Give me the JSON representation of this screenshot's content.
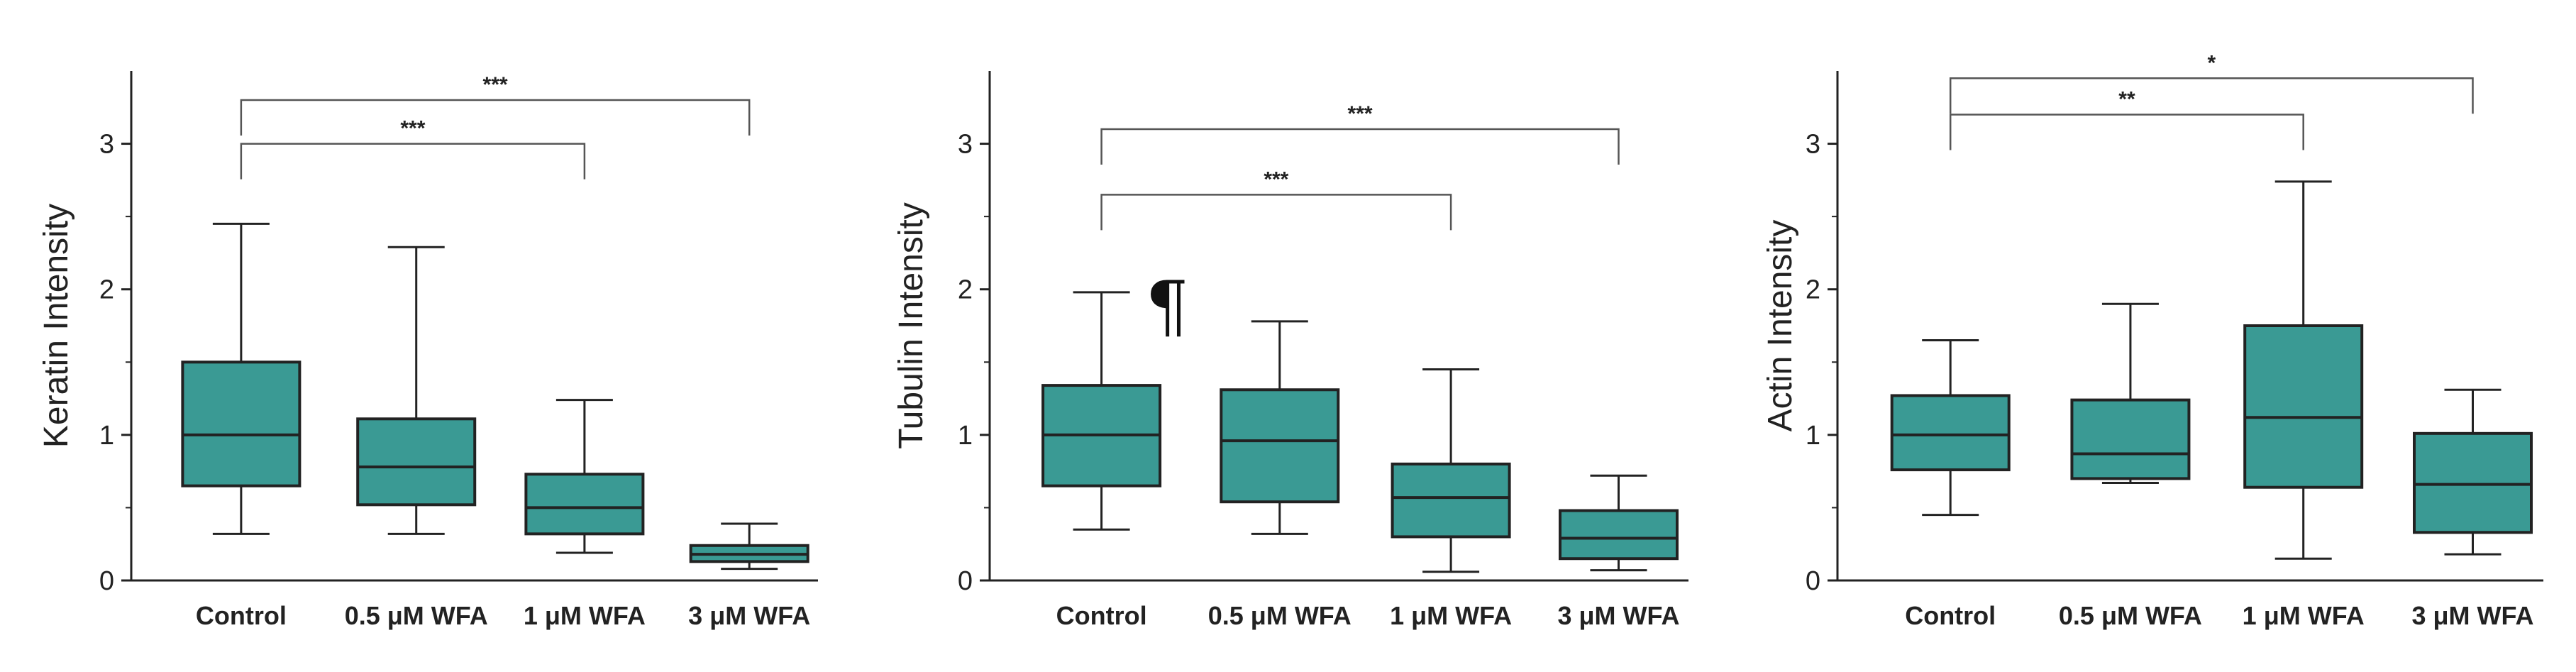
{
  "colors": {
    "box_fill": "#3a9a94",
    "stroke": "#222222",
    "bracket": "#555555"
  },
  "chart_data": [
    {
      "type": "box",
      "ylabel": "Keratin Intensity",
      "ylim": [
        0,
        3.5
      ],
      "yticks": [
        "0",
        "1",
        "2",
        "3"
      ],
      "categories": [
        "Control",
        "0.5 μM WFA",
        "1 μM WFA",
        "3 μM WFA"
      ],
      "boxes": [
        {
          "min": 0.32,
          "q1": 0.65,
          "median": 1.0,
          "q3": 1.5,
          "max": 2.45
        },
        {
          "min": 0.32,
          "q1": 0.52,
          "median": 0.78,
          "q3": 1.11,
          "max": 2.29
        },
        {
          "min": 0.19,
          "q1": 0.32,
          "median": 0.5,
          "q3": 0.73,
          "max": 1.24
        },
        {
          "min": 0.08,
          "q1": 0.13,
          "median": 0.18,
          "q3": 0.24,
          "max": 0.39
        }
      ],
      "significance": [
        {
          "from": 0,
          "to": 2,
          "level": 3.0,
          "label": "***"
        },
        {
          "from": 0,
          "to": 3,
          "level": 3.3,
          "label": "***"
        }
      ]
    },
    {
      "type": "box",
      "ylabel": "Tubulin Intensity",
      "ylim": [
        0,
        3.5
      ],
      "yticks": [
        "0",
        "1",
        "2",
        "3"
      ],
      "categories": [
        "Control",
        "0.5 μM WFA",
        "1 μM WFA",
        "3 μM WFA"
      ],
      "boxes": [
        {
          "min": 0.35,
          "q1": 0.65,
          "median": 1.0,
          "q3": 1.34,
          "max": 1.98
        },
        {
          "min": 0.32,
          "q1": 0.54,
          "median": 0.96,
          "q3": 1.31,
          "max": 1.78
        },
        {
          "min": 0.06,
          "q1": 0.3,
          "median": 0.57,
          "q3": 0.8,
          "max": 1.45
        },
        {
          "min": 0.07,
          "q1": 0.15,
          "median": 0.29,
          "q3": 0.48,
          "max": 0.72
        }
      ],
      "significance": [
        {
          "from": 0,
          "to": 2,
          "level": 2.65,
          "label": "***"
        },
        {
          "from": 0,
          "to": 3,
          "level": 3.1,
          "label": "***"
        }
      ],
      "annotation": "¶"
    },
    {
      "type": "box",
      "ylabel": "Actin Intensity",
      "ylim": [
        0,
        3.5
      ],
      "yticks": [
        "0",
        "1",
        "2",
        "3"
      ],
      "categories": [
        "Control",
        "0.5 μM WFA",
        "1 μM WFA",
        "3 μM WFA"
      ],
      "boxes": [
        {
          "min": 0.45,
          "q1": 0.76,
          "median": 1.0,
          "q3": 1.27,
          "max": 1.65
        },
        {
          "min": 0.67,
          "q1": 0.7,
          "median": 0.87,
          "q3": 1.24,
          "max": 1.9
        },
        {
          "min": 0.15,
          "q1": 0.64,
          "median": 1.12,
          "q3": 1.75,
          "max": 2.74
        },
        {
          "min": 0.18,
          "q1": 0.33,
          "median": 0.66,
          "q3": 1.01,
          "max": 1.31
        }
      ],
      "significance": [
        {
          "from": 0,
          "to": 2,
          "level": 3.2,
          "label": "**"
        },
        {
          "from": 0,
          "to": 3,
          "level": 3.45,
          "label": "*"
        }
      ]
    }
  ]
}
